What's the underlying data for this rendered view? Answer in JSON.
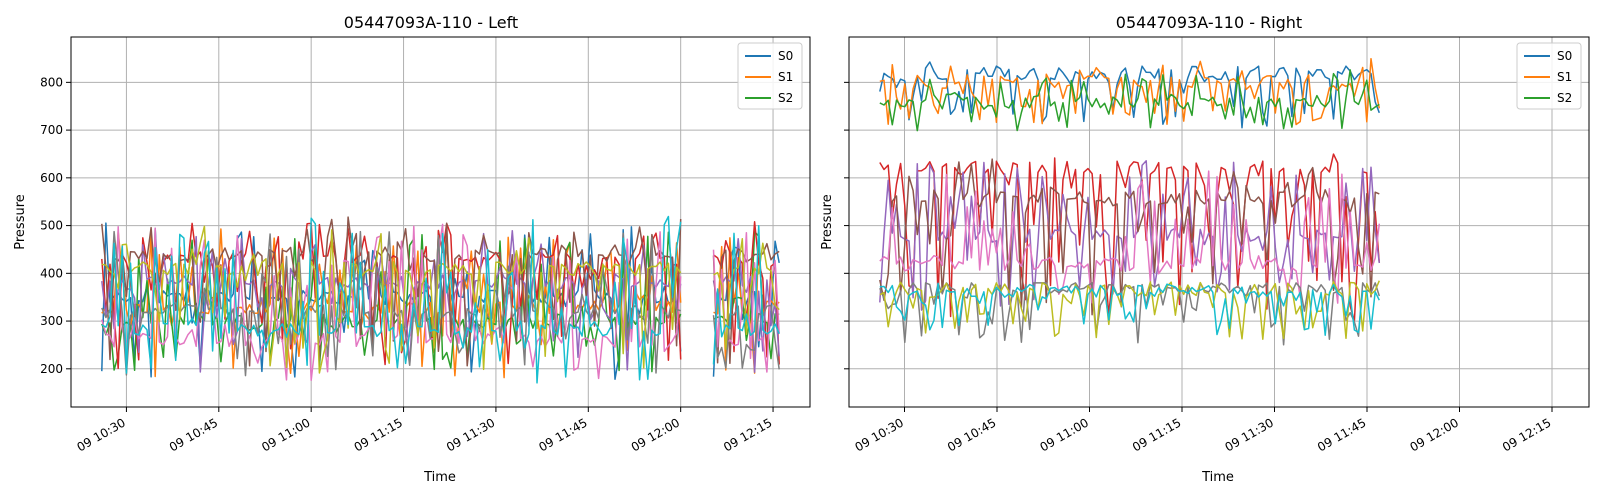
{
  "figure": {
    "background": "#ffffff"
  },
  "chart_data": [
    {
      "type": "line",
      "title": "05447093A-110 - Left",
      "xlabel": "Time",
      "ylabel": "Pressure",
      "x_range": [
        "2024-01-09 10:21:00",
        "2024-01-09 12:21:00"
      ],
      "ylim": [
        120,
        895
      ],
      "grid": true,
      "legend_position": "top-right",
      "x_ticks": [
        "09 10:30",
        "09 10:45",
        "09 11:00",
        "09 11:15",
        "09 11:30",
        "09 11:45",
        "09 12:00",
        "09 12:15"
      ],
      "y_ticks": [
        200,
        300,
        400,
        500,
        600,
        700,
        800
      ],
      "data_extent": {
        "x": [
          "09 10:26",
          "09 12:16"
        ],
        "y": [
          155,
          555
        ]
      },
      "gaps": [
        [
          "09 12:00",
          "09 12:05"
        ]
      ],
      "series": [
        {
          "name": "S0",
          "color": "#1f77b4"
        },
        {
          "name": "S1",
          "color": "#ff7f0e"
        },
        {
          "name": "S2",
          "color": "#2ca02c"
        }
      ],
      "extra_series_colors": [
        "#d62728",
        "#9467bd",
        "#8c564b",
        "#e377c2",
        "#7f7f7f",
        "#bcbd22",
        "#17becf"
      ],
      "levels": [
        {
          "lo": 175,
          "hi": 510,
          "base": 350,
          "n_points": 165
        },
        {
          "lo": 180,
          "hi": 500,
          "base": 330,
          "n_points": 165
        },
        {
          "lo": 185,
          "hi": 495,
          "base": 300,
          "n_points": 165
        },
        {
          "lo": 200,
          "hi": 510,
          "base": 430,
          "n_points": 165
        },
        {
          "lo": 190,
          "hi": 490,
          "base": 380,
          "n_points": 165
        },
        {
          "lo": 200,
          "hi": 520,
          "base": 440,
          "n_points": 165
        },
        {
          "lo": 175,
          "hi": 505,
          "base": 260,
          "n_points": 165
        },
        {
          "lo": 185,
          "hi": 490,
          "base": 320,
          "n_points": 165
        },
        {
          "lo": 190,
          "hi": 500,
          "base": 410,
          "n_points": 165
        },
        {
          "lo": 170,
          "hi": 520,
          "base": 280,
          "n_points": 165
        }
      ]
    },
    {
      "type": "line",
      "title": "05447093A-110 - Right",
      "xlabel": "Time",
      "ylabel": "Pressure",
      "x_range": [
        "2024-01-09 10:21:00",
        "2024-01-09 12:21:00"
      ],
      "ylim": [
        120,
        895
      ],
      "grid": true,
      "legend_position": "top-right",
      "x_ticks": [
        "09 10:30",
        "09 10:45",
        "09 11:00",
        "09 11:15",
        "09 11:30",
        "09 11:45",
        "09 12:00",
        "09 12:15"
      ],
      "y_ticks": [
        200,
        300,
        400,
        500,
        600,
        700,
        800
      ],
      "data_extent": {
        "x": [
          "09 10:26",
          "09 11:47"
        ],
        "y": [
          240,
          860
        ]
      },
      "gaps": [],
      "series": [
        {
          "name": "S0",
          "color": "#1f77b4"
        },
        {
          "name": "S1",
          "color": "#ff7f0e"
        },
        {
          "name": "S2",
          "color": "#2ca02c"
        }
      ],
      "extra_series_colors": [
        "#d62728",
        "#9467bd",
        "#8c564b",
        "#e377c2",
        "#7f7f7f",
        "#bcbd22",
        "#17becf"
      ],
      "levels": [
        {
          "lo": 700,
          "hi": 845,
          "base": 820,
          "n_points": 120
        },
        {
          "lo": 710,
          "hi": 850,
          "base": 800,
          "n_points": 120
        },
        {
          "lo": 690,
          "hi": 840,
          "base": 760,
          "n_points": 120
        },
        {
          "lo": 300,
          "hi": 650,
          "base": 620,
          "n_points": 120
        },
        {
          "lo": 320,
          "hi": 640,
          "base": 480,
          "n_points": 120
        },
        {
          "lo": 310,
          "hi": 655,
          "base": 560,
          "n_points": 120
        },
        {
          "lo": 330,
          "hi": 640,
          "base": 420,
          "n_points": 120
        },
        {
          "lo": 250,
          "hi": 380,
          "base": 372,
          "n_points": 120
        },
        {
          "lo": 260,
          "hi": 385,
          "base": 368,
          "n_points": 120
        },
        {
          "lo": 270,
          "hi": 380,
          "base": 365,
          "n_points": 120
        }
      ]
    }
  ]
}
